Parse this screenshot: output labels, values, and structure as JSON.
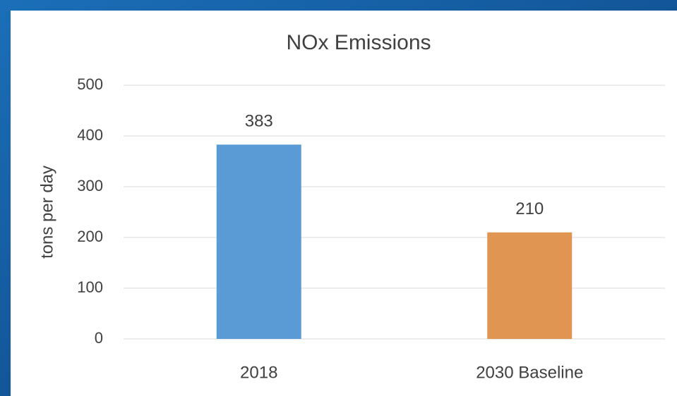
{
  "chart_data": {
    "type": "bar",
    "title": "NOx Emissions",
    "y_label": "tons per day",
    "categories": [
      "2018",
      "2030 Baseline"
    ],
    "values": [
      383,
      210
    ],
    "colors": [
      "#5b9bd5",
      "#e09652"
    ],
    "ylim": [
      0,
      500
    ],
    "yticks": [
      0,
      100,
      200,
      300,
      400,
      500
    ],
    "grid": true
  }
}
